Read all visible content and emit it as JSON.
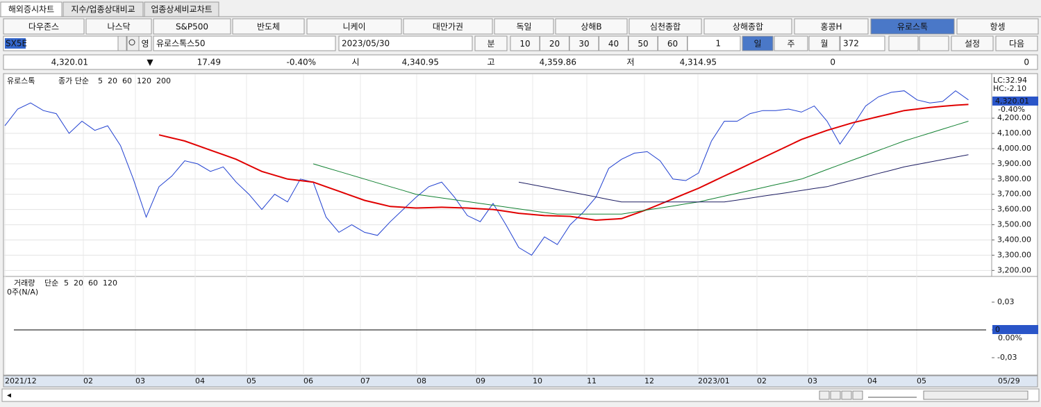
{
  "tabs": [
    "해외증시차트",
    "지수/업종상대비교",
    "업종상세비교차트"
  ],
  "index_buttons": [
    "다우존스",
    "나스닥",
    "S&P500",
    "반도체",
    "니케이",
    "대만가권",
    "독일",
    "상해B",
    "심천종합",
    "상해종합",
    "홍콩H",
    "유로스톡",
    "항셍"
  ],
  "toolbar": {
    "symbol": "SX5E",
    "lang": "영",
    "name": "유로스톡스50",
    "date": "2023/05/30",
    "minute": "분",
    "intervals": [
      "10",
      "20",
      "30",
      "40",
      "50",
      "60"
    ],
    "count": "1",
    "periods": [
      "일",
      "주",
      "월"
    ],
    "bars": "372",
    "settings": "설정",
    "next": "다음"
  },
  "quote": {
    "price": "4,320.01",
    "arrow": "▼",
    "change": "17.49",
    "change_pct": "-0.40%",
    "open_label": "시",
    "open": "4,340.95",
    "high_label": "고",
    "high": "4,359.86",
    "low_label": "저",
    "low": "4,314.95",
    "volume": "0",
    "amount": "0"
  },
  "price_chart": {
    "type": "line",
    "legend_name": "유로스톡",
    "legend_ma": "종가 단순",
    "legend": [
      {
        "name": "5",
        "color": "#1a1aa6"
      },
      {
        "name": "20",
        "color": "#c020c0"
      },
      {
        "name": "60",
        "color": "#d00000"
      },
      {
        "name": "120",
        "color": "#108030"
      },
      {
        "name": "200",
        "color": "#000000"
      }
    ],
    "lc": "LC:32.94",
    "hc": "HC:-2.10",
    "last_label": "4,320.01",
    "last_pct": "-0.40%",
    "ylim": [
      3165,
      4488
    ],
    "yticks": [
      {
        "value": 3200,
        "label": "3,200.00"
      },
      {
        "value": 3300,
        "label": "3,300.00"
      },
      {
        "value": 3400,
        "label": "3,400.00"
      },
      {
        "value": 3500,
        "label": "3,500.00"
      },
      {
        "value": 3600,
        "label": "3,600.00"
      },
      {
        "value": 3700,
        "label": "3,700.00"
      },
      {
        "value": 3800,
        "label": "3,800.00"
      },
      {
        "value": 3900,
        "label": "3,900.00"
      },
      {
        "value": 4000,
        "label": "4,000.00"
      },
      {
        "value": 4100,
        "label": "4,100.00"
      },
      {
        "value": 4200,
        "label": "4,200.00"
      }
    ],
    "series": [
      {
        "color": "#1f3fd0",
        "values": [
          4150,
          4260,
          4300,
          4250,
          4230,
          4100,
          4180,
          4120,
          4150,
          4020,
          3800,
          3550,
          3750,
          3820,
          3920,
          3900,
          3850,
          3880,
          3780,
          3700,
          3600,
          3700,
          3650,
          3800,
          3780,
          3550,
          3450,
          3500,
          3450,
          3430,
          3520,
          3600,
          3680,
          3750,
          3780,
          3680,
          3560,
          3520,
          3640,
          3500,
          3350,
          3300,
          3420,
          3370,
          3500,
          3580,
          3680,
          3870,
          3930,
          3970,
          3980,
          3920,
          3800,
          3790,
          3840,
          4050,
          4180,
          4180,
          4230,
          4250,
          4250,
          4260,
          4240,
          4280,
          4180,
          4030,
          4150,
          4280,
          4340,
          4370,
          4380,
          4320,
          4300,
          4310,
          4380,
          4320.01
        ]
      },
      {
        "color": "#e00000",
        "values": [
          null,
          null,
          null,
          null,
          null,
          null,
          null,
          null,
          null,
          null,
          null,
          null,
          4090,
          4070,
          4050,
          4020,
          3990,
          3960,
          3930,
          3890,
          3850,
          3825,
          3800,
          3790,
          3780,
          3750,
          3720,
          3690,
          3660,
          3640,
          3620,
          3615,
          3610,
          3612,
          3615,
          3612,
          3610,
          3605,
          3600,
          3588,
          3575,
          3568,
          3560,
          3558,
          3555,
          3542,
          3530,
          3535,
          3540,
          3570,
          3600,
          3635,
          3670,
          3705,
          3740,
          3780,
          3820,
          3860,
          3900,
          3940,
          3980,
          4020,
          4060,
          4090,
          4120,
          4145,
          4170,
          4190,
          4210,
          4230,
          4250,
          4260,
          4270,
          4278,
          4285,
          4290
        ]
      },
      {
        "color": "#108030",
        "values": [
          null,
          null,
          null,
          null,
          null,
          null,
          null,
          null,
          null,
          null,
          null,
          null,
          null,
          null,
          null,
          null,
          null,
          null,
          null,
          null,
          null,
          null,
          null,
          null,
          3900,
          3875,
          3850,
          3825,
          3800,
          3775,
          3750,
          3725,
          3700,
          3688,
          3676,
          3664,
          3652,
          3640,
          3628,
          3616,
          3604,
          3592,
          3580,
          3570,
          3570,
          3570,
          3570,
          3570,
          3570,
          3583,
          3597,
          3610,
          3623,
          3637,
          3650,
          3669,
          3688,
          3706,
          3725,
          3744,
          3763,
          3781,
          3800,
          3831,
          3863,
          3894,
          3925,
          3956,
          3988,
          4019,
          4050,
          4076,
          4102,
          4128,
          4154,
          4180
        ]
      },
      {
        "color": "#1a1a60",
        "values": [
          null,
          null,
          null,
          null,
          null,
          null,
          null,
          null,
          null,
          null,
          null,
          null,
          null,
          null,
          null,
          null,
          null,
          null,
          null,
          null,
          null,
          null,
          null,
          null,
          null,
          null,
          null,
          null,
          null,
          null,
          null,
          null,
          null,
          null,
          null,
          null,
          null,
          null,
          null,
          null,
          3780,
          3764,
          3748,
          3731,
          3715,
          3699,
          3683,
          3666,
          3650,
          3650,
          3650,
          3650,
          3650,
          3650,
          3650,
          3650,
          3650,
          3662,
          3675,
          3688,
          3700,
          3712,
          3725,
          3738,
          3750,
          3772,
          3793,
          3815,
          3837,
          3858,
          3880,
          3896,
          3912,
          3928,
          3944,
          3960
        ]
      }
    ]
  },
  "volume_chart": {
    "legend_name": "거래량",
    "legend_ma": "단순",
    "legend": [
      {
        "name": "5",
        "color": "#1a1aa6"
      },
      {
        "name": "20",
        "color": "#d00000"
      },
      {
        "name": "60",
        "color": "#108030"
      },
      {
        "name": "120",
        "color": "#000000"
      }
    ],
    "note": "0주(N/A)",
    "ylim": [
      -0.04875,
      0.05625
    ],
    "yticks": [
      {
        "value": 0.03,
        "label": "0,03"
      },
      0,
      {
        "value": -0.03,
        "label": "-0,03"
      }
    ],
    "last_label": "0",
    "last_pct": "0.00%"
  },
  "x_axis": [
    "2021/12",
    "02",
    "03",
    "04",
    "05",
    "06",
    "07",
    "08",
    "09",
    "10",
    "11",
    "12",
    "2023/01",
    "02",
    "03",
    "04",
    "05",
    "05/29"
  ]
}
